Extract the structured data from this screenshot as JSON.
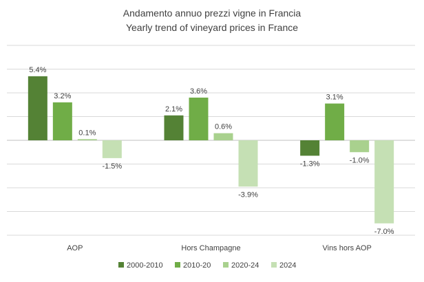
{
  "chart_data": {
    "type": "bar",
    "title": "Andamento annuo prezzi vigne in Francia",
    "subtitle": "Yearly trend of vineyard prices in France",
    "categories": [
      "AOP",
      "Hors Champagne",
      "Vins hors AOP"
    ],
    "series": [
      {
        "name": "2000-2010",
        "color": "#548235",
        "values": [
          5.4,
          2.1,
          -1.3
        ],
        "labels": [
          "5.4%",
          "2.1%",
          "-1.3%"
        ]
      },
      {
        "name": "2010-20",
        "color": "#70AD47",
        "values": [
          3.2,
          3.6,
          3.1
        ],
        "labels": [
          "3.2%",
          "3.6%",
          "3.1%"
        ]
      },
      {
        "name": "2020-24",
        "color": "#A9D18E",
        "values": [
          0.1,
          0.6,
          -1.0
        ],
        "labels": [
          "0.1%",
          "0.6%",
          "-1.0%"
        ]
      },
      {
        "name": "2024",
        "color": "#C5E0B4",
        "values": [
          -1.5,
          -3.9,
          -7.0
        ],
        "labels": [
          "-1.5%",
          "-3.9%",
          "-7.0%"
        ]
      }
    ],
    "xlabel": "",
    "ylabel": "",
    "ylim": [
      -8,
      8
    ],
    "gridlines": [
      -8,
      -6,
      -4,
      -2,
      0,
      2,
      4,
      6,
      8
    ],
    "y_tick_labels": "none",
    "grid": true,
    "legend_position": "bottom",
    "data_labels_unit": "%"
  }
}
